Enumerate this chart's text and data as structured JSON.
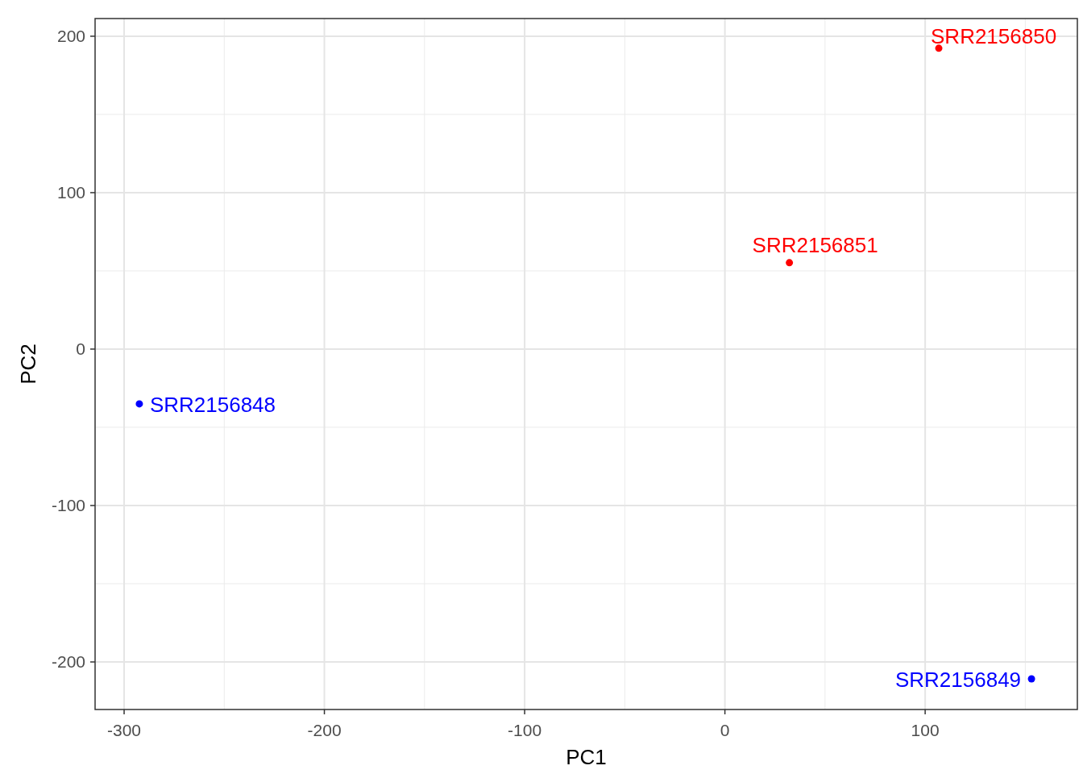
{
  "chart_data": {
    "type": "scatter",
    "xlabel": "PC1",
    "ylabel": "PC2",
    "xlim": [
      -314.5,
      176
    ],
    "ylim": [
      -230.4,
      211.3
    ],
    "xticks": [
      -300,
      -200,
      -100,
      0,
      100
    ],
    "yticks": [
      -200,
      -100,
      0,
      100,
      200
    ],
    "grid": true,
    "marker": "circle",
    "series": [
      {
        "name": "SRR2156848",
        "color": "#0000ff",
        "x": [
          -292.4
        ],
        "values": [
          -35
        ]
      },
      {
        "name": "SRR2156849",
        "color": "#0000ff",
        "x": [
          153.1
        ],
        "values": [
          -210.8
        ]
      },
      {
        "name": "SRR2156850",
        "color": "#ff0000",
        "x": [
          106.8
        ],
        "values": [
          192.3
        ]
      },
      {
        "name": "SRR2156851",
        "color": "#ff0000",
        "x": [
          32.2
        ],
        "values": [
          55.2
        ]
      }
    ]
  }
}
